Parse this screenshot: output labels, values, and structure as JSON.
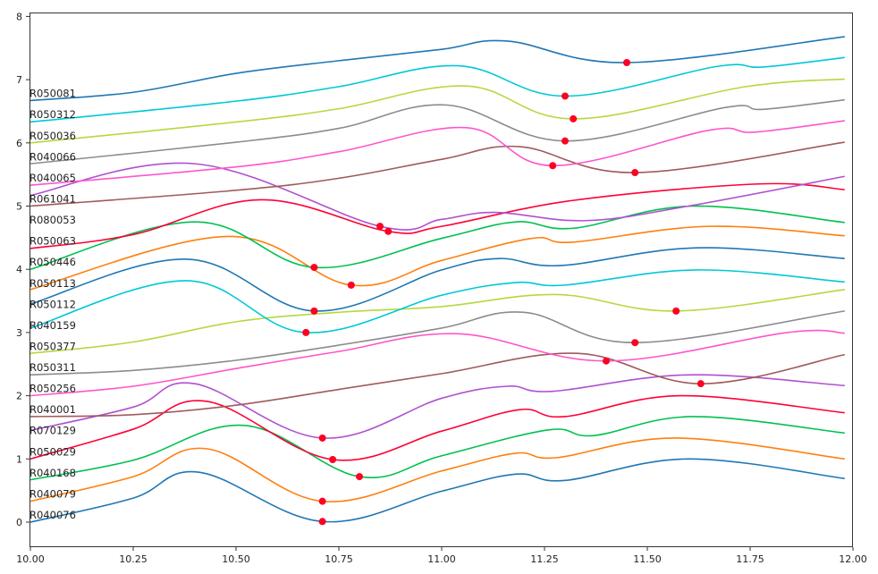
{
  "chart_data": {
    "type": "line",
    "title": "",
    "xlabel": "",
    "ylabel": "",
    "xlim": [
      10.0,
      12.0
    ],
    "ylim": [
      -0.4,
      8.05
    ],
    "x_ticks": [
      "10.00",
      "10.25",
      "10.50",
      "10.75",
      "11.00",
      "11.25",
      "11.50",
      "11.75",
      "12.00"
    ],
    "y_ticks": [
      "0",
      "1",
      "2",
      "3",
      "4",
      "5",
      "6",
      "7",
      "8"
    ],
    "grid": false,
    "legend": "none",
    "marker_color": "#ff0022",
    "series": [
      {
        "name": "R040076",
        "color": "#1f77b4",
        "points": [
          [
            10,
            0
          ],
          [
            10.25,
            0.38
          ],
          [
            10.41,
            0.79
          ],
          [
            10.71,
            0.01
          ],
          [
            11.0,
            0.49
          ],
          [
            11.18,
            0.76
          ],
          [
            11.3,
            0.66
          ],
          [
            11.6,
            1.0
          ],
          [
            11.98,
            0.69
          ]
        ],
        "min": [
          10.71,
          0.01
        ]
      },
      {
        "name": "R040079",
        "color": "#ff7f0e",
        "points": [
          [
            10,
            0.33
          ],
          [
            10.25,
            0.72
          ],
          [
            10.43,
            1.16
          ],
          [
            10.71,
            0.33
          ],
          [
            11.0,
            0.81
          ],
          [
            11.18,
            1.09
          ],
          [
            11.28,
            1.02
          ],
          [
            11.57,
            1.33
          ],
          [
            11.98,
            1.0
          ]
        ],
        "min": [
          10.71,
          0.33
        ]
      },
      {
        "name": "R040168",
        "color": "#00c050",
        "points": [
          [
            10,
            0.67
          ],
          [
            10.25,
            0.98
          ],
          [
            10.52,
            1.53
          ],
          [
            10.8,
            0.72
          ],
          [
            11.0,
            1.05
          ],
          [
            11.26,
            1.46
          ],
          [
            11.37,
            1.37
          ],
          [
            11.61,
            1.67
          ],
          [
            11.98,
            1.41
          ]
        ],
        "min": [
          10.8,
          0.72
        ]
      },
      {
        "name": "R050029",
        "color": "#ff0033",
        "points": [
          [
            10,
            1.0
          ],
          [
            10.25,
            1.47
          ],
          [
            10.43,
            1.91
          ],
          [
            10.735,
            0.99
          ],
          [
            11.0,
            1.44
          ],
          [
            11.19,
            1.78
          ],
          [
            11.3,
            1.67
          ],
          [
            11.58,
            2.0
          ],
          [
            11.98,
            1.73
          ]
        ],
        "min": [
          10.735,
          0.99
        ]
      },
      {
        "name": "R070129",
        "color": "#b050d0",
        "points": [
          [
            10,
            1.45
          ],
          [
            10.25,
            1.82
          ],
          [
            10.4,
            2.19
          ],
          [
            10.71,
            1.33
          ],
          [
            11.0,
            1.96
          ],
          [
            11.16,
            2.15
          ],
          [
            11.27,
            2.07
          ],
          [
            11.6,
            2.33
          ],
          [
            11.98,
            2.16
          ]
        ],
        "min": [
          10.71,
          1.33
        ]
      },
      {
        "name": "R040001",
        "color": "#a05a5a",
        "points": [
          [
            10,
            1.67
          ],
          [
            10.25,
            1.7
          ],
          [
            10.5,
            1.85
          ],
          [
            10.75,
            2.1
          ],
          [
            11.0,
            2.35
          ],
          [
            11.33,
            2.67
          ],
          [
            11.63,
            2.19
          ],
          [
            11.98,
            2.65
          ]
        ],
        "min": [
          11.63,
          2.19
        ]
      },
      {
        "name": "R050256",
        "color": "#ff55cc",
        "points": [
          [
            10,
            2.0
          ],
          [
            10.25,
            2.15
          ],
          [
            10.5,
            2.43
          ],
          [
            10.75,
            2.7
          ],
          [
            11.04,
            2.98
          ],
          [
            11.4,
            2.55
          ],
          [
            11.84,
            3.0
          ],
          [
            11.98,
            2.99
          ]
        ],
        "min": [
          11.4,
          2.55
        ]
      },
      {
        "name": "R050311",
        "color": "#8c8c8c",
        "points": [
          [
            10,
            2.33
          ],
          [
            10.25,
            2.4
          ],
          [
            10.5,
            2.56
          ],
          [
            10.75,
            2.8
          ],
          [
            11.0,
            3.07
          ],
          [
            11.2,
            3.32
          ],
          [
            11.47,
            2.84
          ],
          [
            11.98,
            3.34
          ]
        ],
        "min": [
          11.47,
          2.84
        ]
      },
      {
        "name": "R050377",
        "color": "#b5d840",
        "points": [
          [
            10,
            2.67
          ],
          [
            10.25,
            2.85
          ],
          [
            10.5,
            3.17
          ],
          [
            10.75,
            3.32
          ],
          [
            11.0,
            3.41
          ],
          [
            11.28,
            3.6
          ],
          [
            11.57,
            3.34
          ],
          [
            11.98,
            3.68
          ]
        ],
        "min": [
          11.57,
          3.34
        ]
      },
      {
        "name": "R040159",
        "color": "#00c8d8",
        "points": [
          [
            10,
            3.07
          ],
          [
            10.38,
            3.82
          ],
          [
            10.67,
            3.0
          ],
          [
            11.0,
            3.59
          ],
          [
            11.18,
            3.79
          ],
          [
            11.3,
            3.75
          ],
          [
            11.62,
            3.99
          ],
          [
            11.98,
            3.8
          ]
        ],
        "min": [
          10.67,
          3.0
        ]
      },
      {
        "name": "R050112",
        "color": "#1f77b4",
        "points": [
          [
            10,
            3.45
          ],
          [
            10.38,
            4.16
          ],
          [
            10.69,
            3.34
          ],
          [
            11.0,
            3.99
          ],
          [
            11.14,
            4.17
          ],
          [
            11.29,
            4.06
          ],
          [
            11.62,
            4.34
          ],
          [
            11.98,
            4.17
          ]
        ],
        "min": [
          10.69,
          3.34
        ]
      },
      {
        "name": "R050113",
        "color": "#ff7f0e",
        "points": [
          [
            10,
            3.68
          ],
          [
            10.48,
            4.52
          ],
          [
            10.78,
            3.75
          ],
          [
            11.0,
            4.14
          ],
          [
            11.22,
            4.49
          ],
          [
            11.32,
            4.43
          ],
          [
            11.65,
            4.68
          ],
          [
            11.98,
            4.53
          ]
        ],
        "min": [
          10.78,
          3.75
        ]
      },
      {
        "name": "R050446",
        "color": "#00c050",
        "points": [
          [
            10,
            4.0
          ],
          [
            10.4,
            4.75
          ],
          [
            10.69,
            4.03
          ],
          [
            11.0,
            4.49
          ],
          [
            11.18,
            4.75
          ],
          [
            11.32,
            4.65
          ],
          [
            11.61,
            5.0
          ],
          [
            11.98,
            4.74
          ]
        ],
        "min": [
          10.69,
          4.03
        ]
      },
      {
        "name": "R050063",
        "color": "#ff0033",
        "points": [
          [
            10,
            4.33
          ],
          [
            10.25,
            4.55
          ],
          [
            10.56,
            5.1
          ],
          [
            10.87,
            4.6
          ],
          [
            11.0,
            4.68
          ],
          [
            11.32,
            5.09
          ],
          [
            11.77,
            5.35
          ],
          [
            11.98,
            5.26
          ]
        ],
        "min": [
          10.87,
          4.6
        ]
      },
      {
        "name": "R080053",
        "color": "#b050d0",
        "points": [
          [
            10,
            5.17
          ],
          [
            10.4,
            5.67
          ],
          [
            10.85,
            4.68
          ],
          [
            11.0,
            4.79
          ],
          [
            11.13,
            4.9
          ],
          [
            11.35,
            4.77
          ],
          [
            11.6,
            5.0
          ],
          [
            11.98,
            5.47
          ]
        ],
        "min": [
          10.85,
          4.68
        ]
      },
      {
        "name": "R061041",
        "color": "#a05a5a",
        "points": [
          [
            10,
            5.0
          ],
          [
            10.5,
            5.25
          ],
          [
            10.75,
            5.44
          ],
          [
            11.0,
            5.74
          ],
          [
            11.19,
            5.94
          ],
          [
            11.47,
            5.53
          ],
          [
            11.98,
            6.01
          ]
        ],
        "min": [
          11.47,
          5.53
        ]
      },
      {
        "name": "R040065",
        "color": "#ff55cc",
        "points": [
          [
            10,
            5.33
          ],
          [
            10.5,
            5.62
          ],
          [
            10.75,
            5.86
          ],
          [
            11.06,
            6.24
          ],
          [
            11.27,
            5.64
          ],
          [
            11.65,
            6.2
          ],
          [
            11.76,
            6.17
          ],
          [
            11.98,
            6.35
          ]
        ],
        "min": [
          11.27,
          5.64
        ]
      },
      {
        "name": "R040066",
        "color": "#8c8c8c",
        "points": [
          [
            10,
            5.67
          ],
          [
            10.5,
            6.01
          ],
          [
            10.75,
            6.23
          ],
          [
            11.01,
            6.6
          ],
          [
            11.3,
            6.03
          ],
          [
            11.69,
            6.56
          ],
          [
            11.78,
            6.53
          ],
          [
            11.98,
            6.68
          ]
        ],
        "min": [
          11.3,
          6.03
        ]
      },
      {
        "name": "R050036",
        "color": "#b5d840",
        "points": [
          [
            10,
            6.0
          ],
          [
            10.5,
            6.33
          ],
          [
            10.75,
            6.54
          ],
          [
            11.06,
            6.9
          ],
          [
            11.32,
            6.38
          ],
          [
            11.74,
            6.89
          ],
          [
            11.98,
            7.01
          ]
        ],
        "min": [
          11.32,
          6.38
        ]
      },
      {
        "name": "R050312",
        "color": "#00c8d8",
        "points": [
          [
            10,
            6.33
          ],
          [
            10.5,
            6.66
          ],
          [
            10.75,
            6.89
          ],
          [
            11.04,
            7.22
          ],
          [
            11.3,
            6.74
          ],
          [
            11.67,
            7.21
          ],
          [
            11.78,
            7.2
          ],
          [
            11.98,
            7.35
          ]
        ],
        "min": [
          11.3,
          6.74
        ]
      },
      {
        "name": "R050081",
        "color": "#1f77b4",
        "points": [
          [
            10,
            6.67
          ],
          [
            10.25,
            6.8
          ],
          [
            10.5,
            7.1
          ],
          [
            10.75,
            7.3
          ],
          [
            11.0,
            7.48
          ],
          [
            11.16,
            7.61
          ],
          [
            11.45,
            7.27
          ],
          [
            11.98,
            7.68
          ]
        ],
        "min": [
          11.45,
          7.27
        ]
      }
    ]
  }
}
